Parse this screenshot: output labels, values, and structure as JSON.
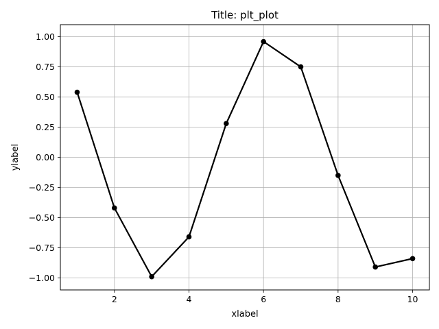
{
  "chart_data": {
    "type": "line",
    "title": "Title: plt_plot",
    "xlabel": "xlabel",
    "ylabel": "ylabel",
    "x": [
      1,
      2,
      3,
      4,
      5,
      6,
      7,
      8,
      9,
      10
    ],
    "series": [
      {
        "values": [
          0.54,
          -0.42,
          -0.99,
          -0.66,
          0.28,
          0.96,
          0.75,
          -0.15,
          -0.91,
          -0.84
        ],
        "color": "#000000",
        "marker": "circle"
      }
    ],
    "xlim": [
      0.55,
      10.45
    ],
    "ylim": [
      -1.1,
      1.1
    ],
    "xticks": [
      2,
      4,
      6,
      8,
      10
    ],
    "xtick_labels": [
      "2",
      "4",
      "6",
      "8",
      "10"
    ],
    "yticks": [
      -1.0,
      -0.75,
      -0.5,
      -0.25,
      0.0,
      0.25,
      0.5,
      0.75,
      1.0
    ],
    "ytick_labels": [
      "−1.00",
      "−0.75",
      "−0.50",
      "−0.25",
      "0.00",
      "0.25",
      "0.50",
      "0.75",
      "1.00"
    ],
    "grid": true
  }
}
